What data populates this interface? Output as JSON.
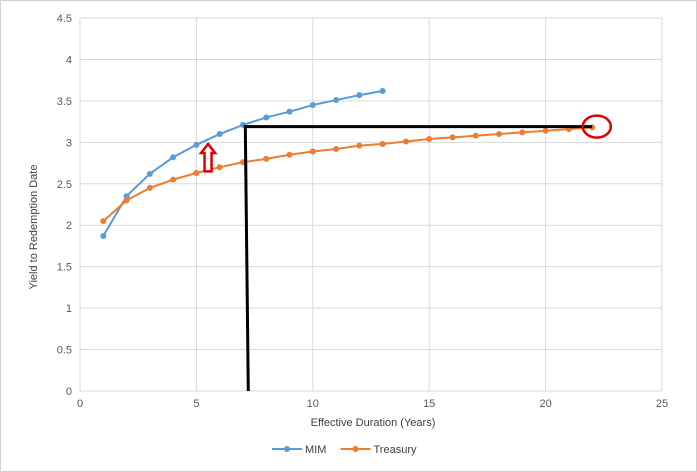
{
  "chart_data": {
    "type": "line",
    "title": "",
    "xlabel": "Effective Duration (Years)",
    "ylabel": "Yield to Redemption Date",
    "xlim": [
      0,
      25
    ],
    "ylim": [
      0,
      4.5
    ],
    "xticks": [
      "0",
      "5",
      "10",
      "15",
      "20",
      "25"
    ],
    "yticks": [
      "0",
      "0.5",
      "1",
      "1.5",
      "2",
      "2.5",
      "3",
      "3.5",
      "4",
      "4.5"
    ],
    "grid": true,
    "legend_position": "bottom",
    "series": [
      {
        "name": "MIM",
        "color": "#5b9bd5",
        "x": [
          1,
          2,
          3,
          4,
          5,
          6,
          7,
          8,
          9,
          10,
          11,
          12,
          13
        ],
        "y": [
          1.87,
          2.35,
          2.62,
          2.82,
          2.97,
          3.1,
          3.21,
          3.3,
          3.37,
          3.45,
          3.51,
          3.57,
          3.62
        ]
      },
      {
        "name": "Treasury",
        "color": "#ed7d31",
        "x": [
          1,
          2,
          3,
          4,
          5,
          6,
          7,
          8,
          9,
          10,
          11,
          12,
          13,
          14,
          15,
          16,
          17,
          18,
          19,
          20,
          21,
          22
        ],
        "y": [
          2.05,
          2.3,
          2.45,
          2.55,
          2.63,
          2.7,
          2.76,
          2.8,
          2.85,
          2.89,
          2.92,
          2.96,
          2.98,
          3.01,
          3.04,
          3.06,
          3.08,
          3.1,
          3.12,
          3.14,
          3.16,
          3.18
        ]
      }
    ],
    "annotations": [
      {
        "type": "vertical-line",
        "x": 7.1,
        "y_from": 0,
        "y_to": 3.21,
        "color": "#000000"
      },
      {
        "type": "horizontal-line",
        "y": 3.19,
        "x_from": 7.1,
        "x_to": 22,
        "color": "#000000"
      },
      {
        "type": "circle",
        "x": 22.2,
        "y": 3.19,
        "color": "#e00000"
      },
      {
        "type": "up-arrow",
        "x": 5.5,
        "y_from": 2.65,
        "y_to": 2.98,
        "color": "#e00000"
      }
    ]
  }
}
